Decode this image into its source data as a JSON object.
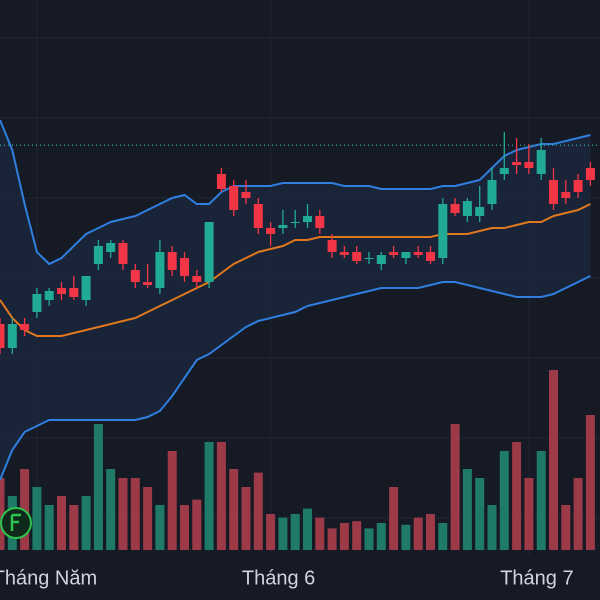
{
  "chart_data": {
    "type": "candlestick",
    "categories": [
      null,
      null,
      null,
      "Tháng Năm",
      null,
      null,
      null,
      null,
      null,
      null,
      null,
      null,
      null,
      null,
      null,
      null,
      null,
      null,
      null,
      null,
      null,
      null,
      "Tháng 6",
      null,
      null,
      null,
      null,
      null,
      null,
      null,
      null,
      null,
      null,
      null,
      null,
      null,
      null,
      null,
      null,
      null,
      null,
      null,
      null,
      "Tháng 7",
      null,
      null,
      null,
      null,
      null
    ],
    "open": [
      46,
      42,
      46,
      48,
      50,
      52,
      52,
      50,
      56,
      58,
      59.5,
      55,
      53,
      52,
      58,
      57,
      54,
      53,
      71,
      69,
      68,
      66,
      62,
      62,
      63,
      63,
      64,
      60,
      58,
      58,
      57,
      56,
      58,
      57,
      58,
      58,
      57,
      66,
      64,
      64,
      66,
      71,
      73,
      73,
      71,
      70,
      68,
      70,
      72
    ],
    "high": [
      47,
      47,
      47,
      52,
      52,
      53,
      54,
      54,
      60,
      60,
      60,
      56,
      56,
      60,
      59,
      58,
      55,
      63,
      72,
      70,
      70,
      67,
      63,
      65,
      65,
      66,
      65,
      61,
      59,
      59,
      58,
      58,
      59,
      58,
      59,
      59,
      67,
      67,
      67,
      69,
      72,
      78,
      77,
      76,
      77,
      72,
      70,
      71,
      73
    ],
    "low": [
      41,
      41,
      44,
      47,
      49,
      50,
      50,
      49,
      55,
      57,
      55,
      52,
      52,
      51,
      54,
      53,
      52,
      52,
      68,
      64,
      66,
      61,
      59,
      61,
      62,
      62,
      61,
      57,
      57,
      56,
      56,
      55,
      57,
      56,
      57,
      56,
      56,
      64,
      63,
      63,
      65,
      70,
      71,
      71,
      70,
      65,
      66,
      67,
      69
    ],
    "close": [
      42,
      46,
      45,
      51,
      51.5,
      51,
      50.5,
      54,
      59,
      59.5,
      56,
      53,
      52.5,
      58,
      55,
      54,
      53,
      63,
      68.5,
      65,
      67,
      62,
      61,
      62.5,
      63,
      64,
      62,
      58,
      57.5,
      56.5,
      57,
      57.5,
      57.5,
      58,
      57.5,
      56.5,
      66,
      64.5,
      66.5,
      65.5,
      70,
      72,
      72.5,
      72,
      75,
      66,
      67,
      68,
      70
    ],
    "volume": [
      40,
      30,
      45,
      35,
      25,
      30,
      25,
      30,
      70,
      45,
      40,
      40,
      35,
      25,
      55,
      25,
      28,
      60,
      60,
      45,
      35,
      43,
      20,
      18,
      20,
      23,
      18,
      12,
      15,
      16,
      12,
      15,
      35,
      14,
      18,
      20,
      15,
      70,
      45,
      40,
      25,
      55,
      60,
      40,
      55,
      100,
      25,
      40,
      75
    ],
    "upper": [
      80,
      75,
      66,
      58,
      56,
      57,
      59,
      61,
      62,
      63,
      63.5,
      64,
      65,
      66,
      67,
      67.5,
      66,
      66,
      68,
      69,
      69,
      69,
      69,
      69.5,
      69.5,
      69.5,
      69.5,
      69.5,
      69,
      69,
      69,
      68.5,
      68.5,
      68.5,
      68.5,
      68.5,
      69,
      69,
      69.5,
      70,
      72,
      74,
      75,
      75.5,
      76,
      76,
      76.5,
      77,
      77.5
    ],
    "middle": [
      50,
      47,
      45,
      44,
      44,
      44,
      44.5,
      45,
      45.5,
      46,
      46.5,
      47,
      48,
      49,
      50,
      51,
      52,
      53,
      54.5,
      56,
      57,
      58,
      58.5,
      59,
      60,
      60,
      60.5,
      60.5,
      60.5,
      60.5,
      60.5,
      60.5,
      60.5,
      60.5,
      60.5,
      60.5,
      61,
      61,
      61,
      61.5,
      62,
      62,
      62.5,
      63,
      63,
      64,
      64.5,
      65,
      66
    ],
    "lower": [
      20,
      25,
      28,
      29,
      30,
      30,
      30,
      30,
      30,
      30,
      30,
      30,
      30.5,
      31.5,
      34,
      37,
      40,
      41,
      42.5,
      44,
      45.5,
      46.5,
      47,
      47.5,
      48,
      49,
      49.5,
      50,
      50.5,
      51,
      51.5,
      52,
      52,
      52,
      52,
      52.5,
      53,
      53,
      52.5,
      52,
      51.5,
      51,
      50.5,
      50.5,
      50.5,
      51,
      52,
      53,
      54
    ],
    "price_line": 75.8,
    "ylim": [
      0,
      100
    ],
    "volume_lim": [
      0,
      100
    ],
    "colors": {
      "up": "#22ab94",
      "down": "#f23645",
      "volume_up": "#1f7a68",
      "volume_down": "#9c3a48",
      "upper": "#2f7fe0",
      "middle": "#e0781e",
      "lower": "#2f7fe0",
      "band": "#1d2a40",
      "price_line": "#2a9d8f"
    }
  }
}
